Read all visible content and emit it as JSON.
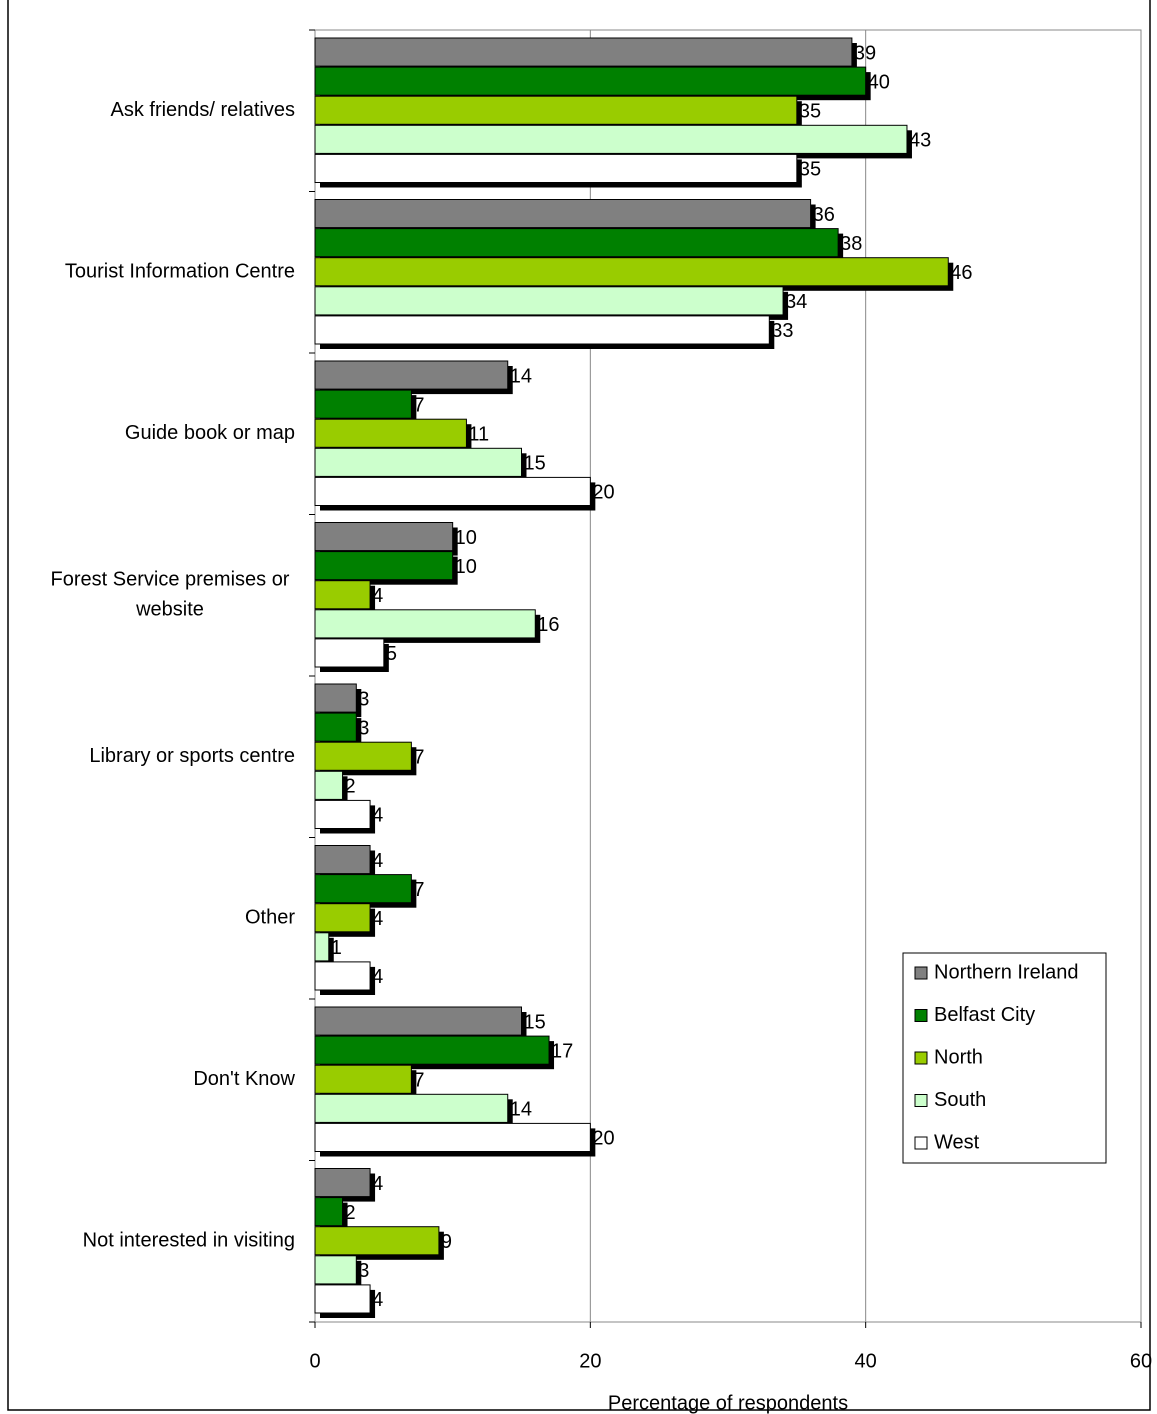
{
  "chart_data": {
    "type": "bar",
    "orientation": "horizontal",
    "categories": [
      "Ask friends/ relatives",
      "Tourist Information Centre",
      "Guide book or map",
      "Forest Service premises or website",
      "Library or sports centre",
      "Other",
      "Don't Know",
      "Not interested in visiting"
    ],
    "series": [
      {
        "name": "Northern Ireland",
        "color": "#808080",
        "values": [
          39,
          36,
          14,
          10,
          3,
          4,
          15,
          4
        ]
      },
      {
        "name": "Belfast City",
        "color": "#008000",
        "values": [
          40,
          38,
          7,
          10,
          3,
          7,
          17,
          2
        ]
      },
      {
        "name": "North",
        "color": "#99cc00",
        "values": [
          35,
          46,
          11,
          4,
          7,
          4,
          7,
          9
        ]
      },
      {
        "name": "South",
        "color": "#ccffcc",
        "values": [
          43,
          34,
          15,
          16,
          2,
          1,
          14,
          3
        ]
      },
      {
        "name": "West",
        "color": "#ffffff",
        "values": [
          35,
          33,
          20,
          5,
          4,
          4,
          20,
          4
        ]
      }
    ],
    "x_label": "Percentage of respondents",
    "xlim": [
      0,
      60
    ],
    "xticks": [
      0,
      20,
      40,
      60
    ],
    "grid": true,
    "legend": "bottom-right",
    "data_labels": true
  }
}
